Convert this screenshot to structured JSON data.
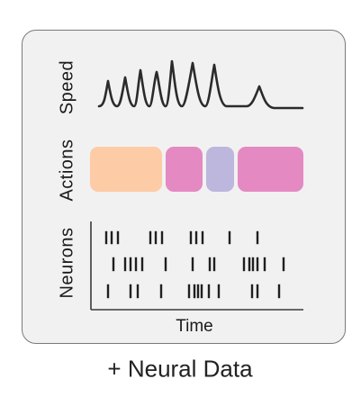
{
  "panel": {
    "row_labels": {
      "speed": "Speed",
      "actions": "Actions",
      "neurons": "Neurons"
    },
    "x_axis_label": "Time"
  },
  "caption": "+ Neural Data",
  "colors": {
    "panel_background": "#f1f1f1",
    "panel_border": "#7a7a7a",
    "speed_trace": "#2b2b2b",
    "action_peach": "#fdcba6",
    "action_magenta": "#e589c2",
    "action_lavender": "#bdb6dd",
    "spikes": "#1f1f1f",
    "axis": "#3a3a3a"
  },
  "actions": {
    "segment_colors": [
      "action_peach",
      "action_magenta",
      "action_lavender",
      "action_magenta"
    ]
  }
}
